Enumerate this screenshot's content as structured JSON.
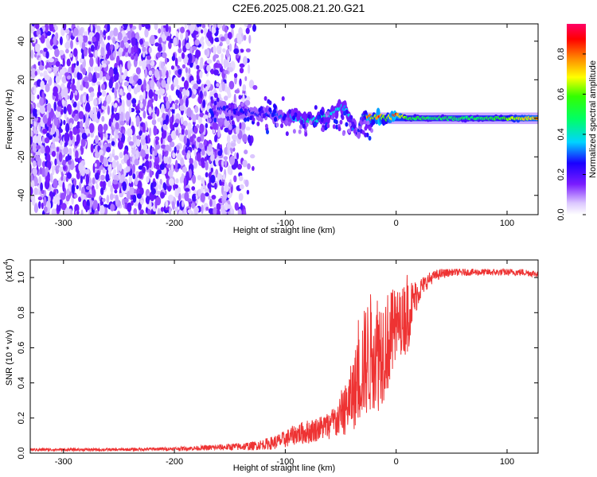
{
  "title": "C2E6.2025.008.21.20.G21",
  "chart_data": [
    {
      "type": "heatmap",
      "title": "",
      "xlabel": "Height of straight line (km)",
      "ylabel": "Frequency (Hz)",
      "xlim": [
        -330,
        128
      ],
      "ylim": [
        -50,
        49
      ],
      "xticks": [
        -300,
        -200,
        -100,
        0,
        100
      ],
      "yticks": [
        -40,
        -20,
        0,
        20,
        40
      ],
      "colorbar": {
        "label": "Normalized spectral amplitude",
        "range": [
          0.0,
          0.95
        ],
        "ticks": [
          0.0,
          0.2,
          0.4,
          0.6,
          0.8
        ],
        "colormap": "rainbow (white-violet-blue-cyan-green-yellow-orange-red-magenta)"
      },
      "noise_region": {
        "x_from": -330,
        "x_to": -125,
        "typical_amplitude": 0.1
      },
      "ridge_points": [
        {
          "x": -160,
          "f": 5,
          "amplitude": 0.3
        },
        {
          "x": -150,
          "f": 4,
          "amplitude": 0.25
        },
        {
          "x": -140,
          "f": 3,
          "amplitude": 0.3
        },
        {
          "x": -130,
          "f": 3,
          "amplitude": 0.3
        },
        {
          "x": -120,
          "f": 2,
          "amplitude": 0.3
        },
        {
          "x": -110,
          "f": 2,
          "amplitude": 0.32
        },
        {
          "x": -100,
          "f": 1,
          "amplitude": 0.35
        },
        {
          "x": -90,
          "f": 0,
          "amplitude": 0.4
        },
        {
          "x": -80,
          "f": -1,
          "amplitude": 0.45
        },
        {
          "x": -70,
          "f": 0,
          "amplitude": 0.45
        },
        {
          "x": -60,
          "f": 2,
          "amplitude": 0.45
        },
        {
          "x": -50,
          "f": 6,
          "amplitude": 0.4
        },
        {
          "x": -45,
          "f": 5,
          "amplitude": 0.4
        },
        {
          "x": -40,
          "f": -3,
          "amplitude": 0.4
        },
        {
          "x": -35,
          "f": -8,
          "amplitude": 0.3
        },
        {
          "x": -30,
          "f": 2,
          "amplitude": 0.35
        },
        {
          "x": -25,
          "f": 0,
          "amplitude": 0.95
        },
        {
          "x": -20,
          "f": 0,
          "amplitude": 0.7
        },
        {
          "x": -15,
          "f": 1,
          "amplitude": 0.95
        },
        {
          "x": -10,
          "f": 0,
          "amplitude": 0.6
        },
        {
          "x": -5,
          "f": 0,
          "amplitude": 0.85
        },
        {
          "x": 0,
          "f": 2,
          "amplitude": 0.95
        },
        {
          "x": 10,
          "f": 0,
          "amplitude": 0.6
        },
        {
          "x": 30,
          "f": 0,
          "amplitude": 0.55
        },
        {
          "x": 60,
          "f": 0,
          "amplitude": 0.55
        },
        {
          "x": 90,
          "f": 0,
          "amplitude": 0.6
        },
        {
          "x": 110,
          "f": 0,
          "amplitude": 0.75
        },
        {
          "x": 128,
          "f": 0,
          "amplitude": 0.85
        }
      ]
    },
    {
      "type": "line",
      "title": "",
      "xlabel": "Height of straight line (km)",
      "ylabel": "SNR (10 * v/v)",
      "yscale_label": "(x10",
      "yscale_exponent": "4",
      "xlim": [
        -330,
        128
      ],
      "ylim": [
        0.0,
        1.1
      ],
      "xticks": [
        -300,
        -200,
        -100,
        0,
        100
      ],
      "yticks": [
        0.0,
        0.2,
        0.4,
        0.6,
        0.8,
        1.0
      ],
      "color": "#ee3333",
      "series": [
        {
          "x": [
            -330,
            -300,
            -250,
            -200,
            -170,
            -150,
            -130,
            -120,
            -110,
            -100,
            -90,
            -80,
            -70,
            -60,
            -50,
            -45,
            -40,
            -35,
            -30,
            -25,
            -20,
            -15,
            -10,
            -5,
            0,
            5,
            10,
            15,
            20,
            25,
            30,
            35,
            40,
            50,
            60,
            80,
            100,
            115,
            128
          ],
          "y": [
            0.02,
            0.02,
            0.02,
            0.025,
            0.03,
            0.035,
            0.04,
            0.05,
            0.06,
            0.08,
            0.11,
            0.12,
            0.14,
            0.16,
            0.2,
            0.26,
            0.32,
            0.4,
            0.5,
            0.55,
            0.6,
            0.58,
            0.62,
            0.65,
            0.72,
            0.75,
            0.8,
            0.86,
            0.92,
            0.96,
            0.99,
            1.01,
            1.02,
            1.03,
            1.03,
            1.03,
            1.03,
            1.03,
            1.02
          ],
          "spread": [
            0.008,
            0.008,
            0.008,
            0.01,
            0.015,
            0.02,
            0.025,
            0.03,
            0.04,
            0.05,
            0.06,
            0.07,
            0.07,
            0.08,
            0.12,
            0.15,
            0.2,
            0.25,
            0.3,
            0.35,
            0.35,
            0.35,
            0.3,
            0.28,
            0.22,
            0.18,
            0.25,
            0.12,
            0.08,
            0.05,
            0.04,
            0.03,
            0.03,
            0.02,
            0.02,
            0.02,
            0.02,
            0.02,
            0.02
          ]
        }
      ]
    }
  ]
}
